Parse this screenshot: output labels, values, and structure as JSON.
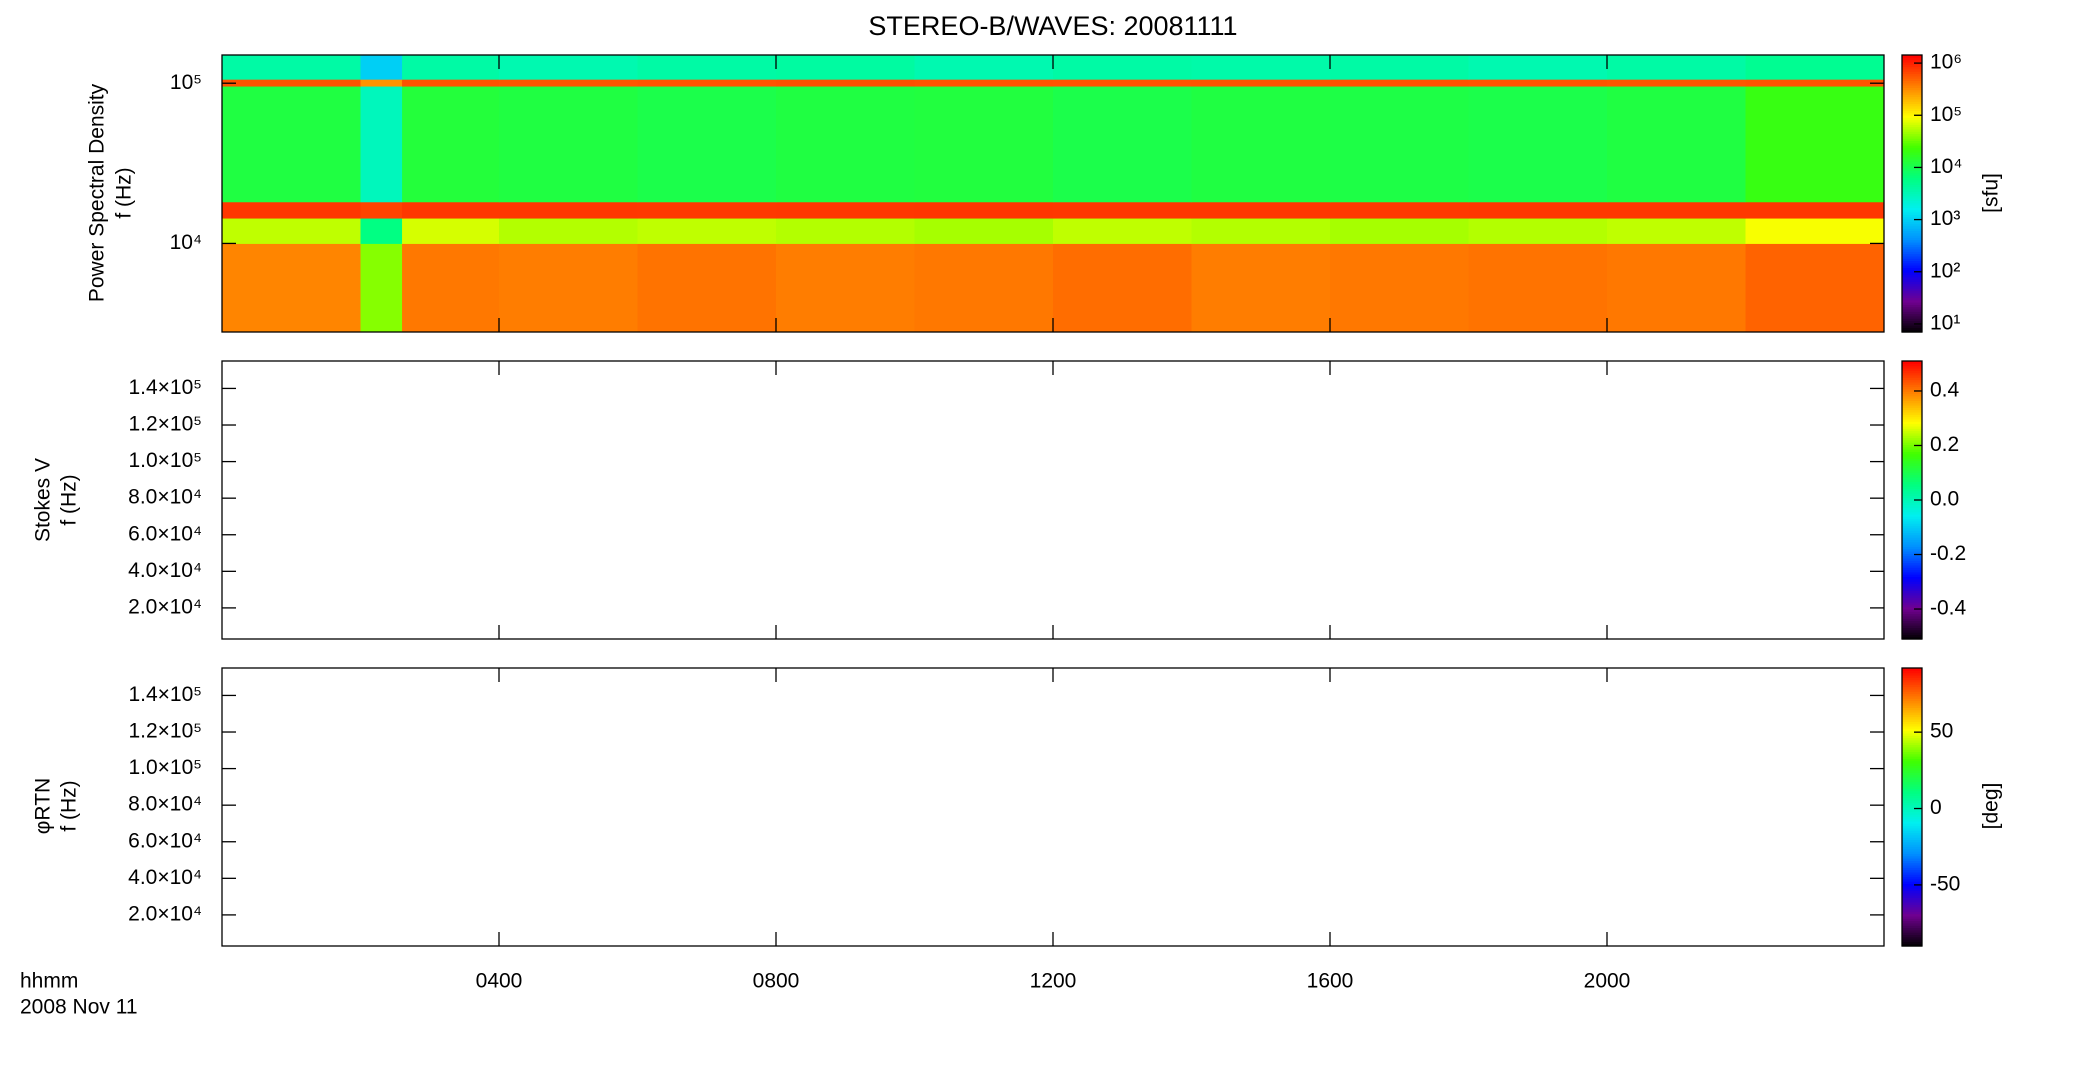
{
  "chart_data": [
    {
      "type": "heatmap",
      "title": "STEREO-B/WAVES: 20081111",
      "ylabel": [
        "Power Spectral Density",
        "f (Hz)"
      ],
      "ylog": true,
      "ylim": [
        2800,
        150000
      ],
      "yticks": [
        {
          "value": 10000,
          "label": "10⁴"
        },
        {
          "value": 100000,
          "label": "10⁵"
        }
      ],
      "xlim": [
        0,
        24
      ],
      "x_bins": [
        0,
        2,
        2.6,
        4,
        6,
        8,
        10,
        12,
        14,
        16,
        18,
        20,
        22,
        24
      ],
      "y_bins": [
        2800,
        10000,
        14400,
        18200,
        96000,
        106000,
        150000
      ],
      "z": [
        [
          350000,
          40000,
          400000,
          380000,
          420000,
          380000,
          400000,
          450000,
          380000,
          400000,
          420000,
          400000,
          500000
        ],
        [
          60000,
          6000,
          70000,
          55000,
          60000,
          55000,
          50000,
          60000,
          55000,
          50000,
          55000,
          60000,
          90000
        ],
        [
          800000,
          700000,
          800000,
          800000,
          790000,
          800000,
          810000,
          800000,
          800000,
          790000,
          800000,
          800000,
          800000
        ],
        [
          12000,
          3000,
          13000,
          12000,
          11000,
          12000,
          12500,
          11000,
          12000,
          11500,
          11000,
          12000,
          20000
        ],
        [
          600000,
          300000,
          600000,
          580000,
          600000,
          620000,
          600000,
          590000,
          600000,
          610000,
          600000,
          580000,
          600000
        ],
        [
          4000,
          1000,
          4000,
          3500,
          4000,
          4200,
          3500,
          4000,
          3800,
          4000,
          3500,
          4000,
          5000
        ]
      ],
      "clog": true,
      "clim": [
        7,
        1430000
      ],
      "cticks": [
        {
          "value": 1000000,
          "label": "10⁶"
        },
        {
          "value": 100000,
          "label": "10⁵"
        },
        {
          "value": 10000,
          "label": "10⁴"
        },
        {
          "value": 1000,
          "label": "10³"
        },
        {
          "value": 100,
          "label": "10²"
        },
        {
          "value": 10,
          "label": "10¹"
        }
      ],
      "clabel": "[sfu]",
      "colormap": [
        "#000000",
        "#700090",
        "#0000ff",
        "#0090ff",
        "#00f0f0",
        "#00ff80",
        "#40ff00",
        "#ffff00",
        "#ff8000",
        "#ff0000"
      ]
    },
    {
      "type": "heatmap",
      "ylabel": [
        "Stokes V",
        "f (Hz)"
      ],
      "ylim": [
        3000,
        155000
      ],
      "yticks": [
        {
          "value": 20000,
          "label": "2.0×10⁴"
        },
        {
          "value": 40000,
          "label": "4.0×10⁴"
        },
        {
          "value": 60000,
          "label": "6.0×10⁴"
        },
        {
          "value": 80000,
          "label": "8.0×10⁴"
        },
        {
          "value": 100000,
          "label": "1.0×10⁵"
        },
        {
          "value": 120000,
          "label": "1.2×10⁵"
        },
        {
          "value": 140000,
          "label": "1.4×10⁵"
        }
      ],
      "xlim": [
        0,
        24
      ],
      "clim": [
        -0.51,
        0.51
      ],
      "cticks": [
        0.4,
        0.2,
        {
          "value": 0,
          "label": "0.0"
        },
        -0.2,
        -0.4
      ],
      "colormap": [
        "#000000",
        "#700090",
        "#0000ff",
        "#0090ff",
        "#00f0f0",
        "#00ff80",
        "#40ff00",
        "#ffff00",
        "#ff8000",
        "#ff0000"
      ]
    },
    {
      "type": "heatmap",
      "ylabel": [
        "φRTN",
        "f (Hz)"
      ],
      "ylim": [
        3000,
        155000
      ],
      "yticks": [
        {
          "value": 20000,
          "label": "2.0×10⁴"
        },
        {
          "value": 40000,
          "label": "4.0×10⁴"
        },
        {
          "value": 60000,
          "label": "6.0×10⁴"
        },
        {
          "value": 80000,
          "label": "8.0×10⁴"
        },
        {
          "value": 100000,
          "label": "1.0×10⁵"
        },
        {
          "value": 120000,
          "label": "1.2×10⁵"
        },
        {
          "value": 140000,
          "label": "1.4×10⁵"
        }
      ],
      "xlim": [
        0,
        24
      ],
      "xticks": [
        {
          "value": 4,
          "label": "0400"
        },
        {
          "value": 8,
          "label": "0800"
        },
        {
          "value": 12,
          "label": "1200"
        },
        {
          "value": 16,
          "label": "1600"
        },
        {
          "value": 20,
          "label": "2000"
        }
      ],
      "xlabel": [
        "hhmm",
        "2008 Nov 11"
      ],
      "clim": [
        -90,
        92
      ],
      "cticks": [
        50,
        0,
        -50
      ],
      "clabel": "[deg]",
      "colormap": [
        "#000000",
        "#700090",
        "#0000ff",
        "#0090ff",
        "#00f0f0",
        "#00ff80",
        "#40ff00",
        "#ffff00",
        "#ff8000",
        "#ff0000"
      ]
    }
  ]
}
